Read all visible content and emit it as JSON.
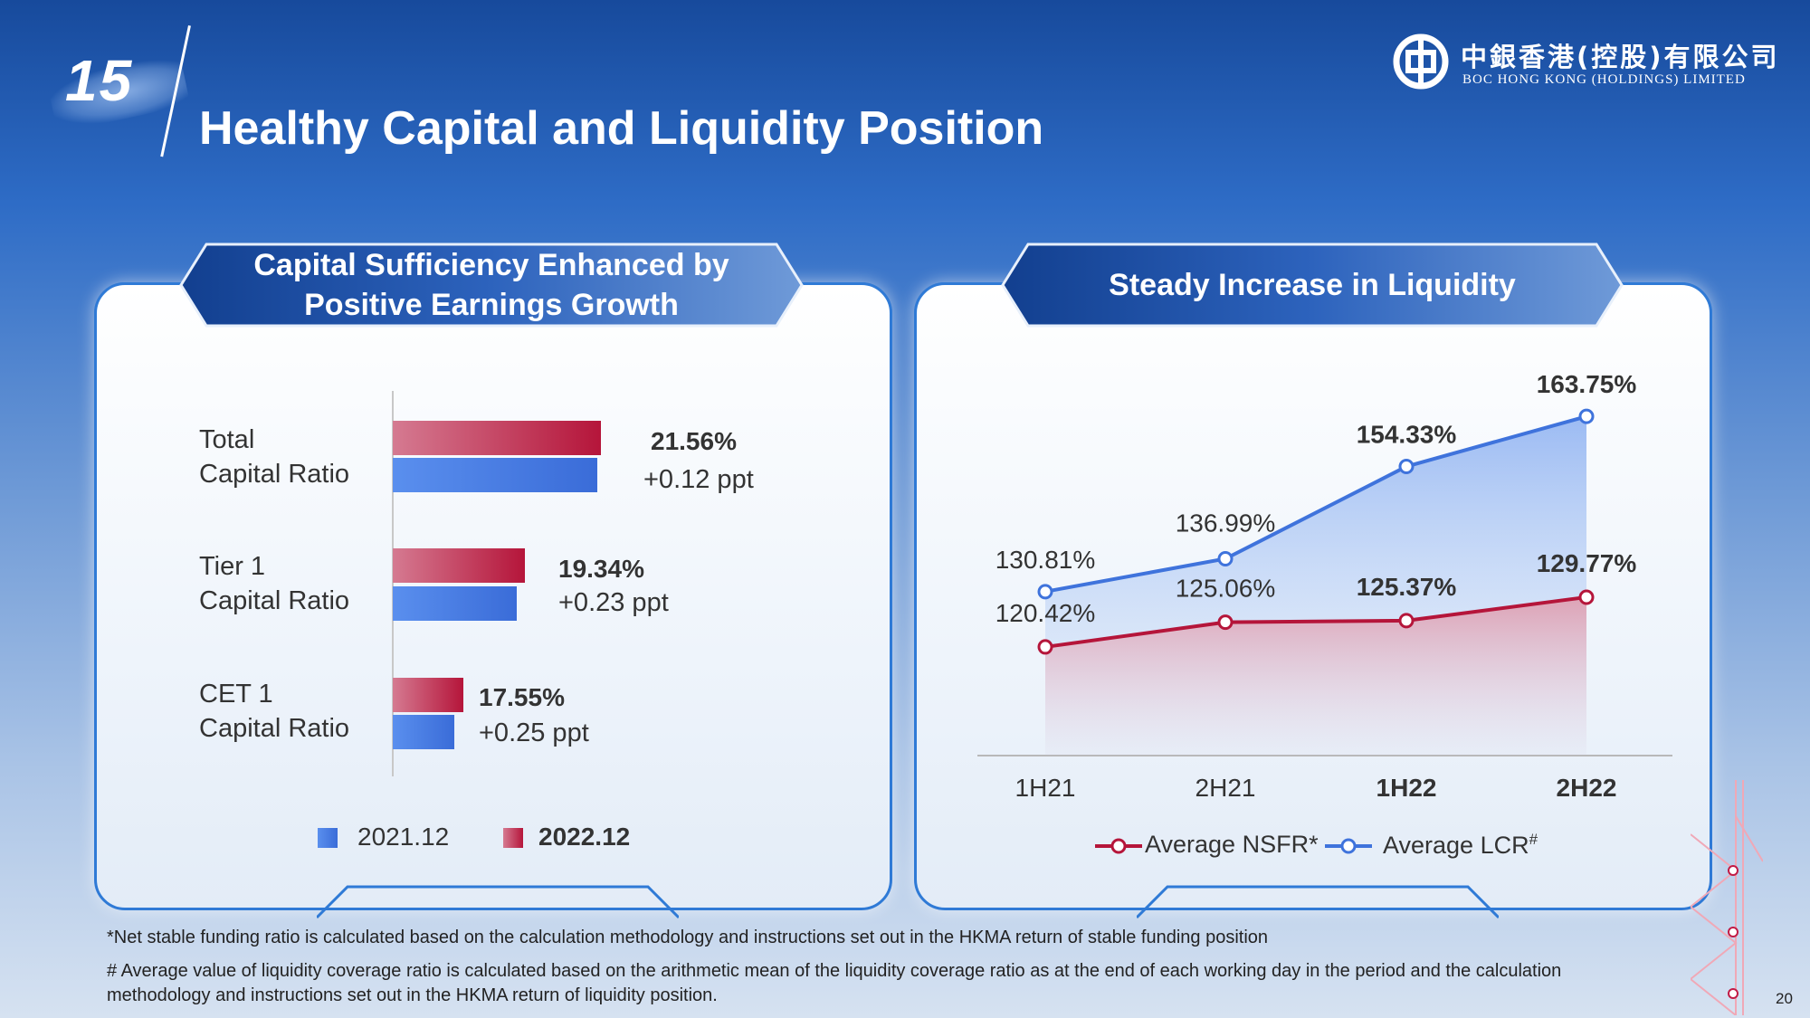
{
  "slide": {
    "number": "15",
    "title": "Healthy Capital and Liquidity Position",
    "page_number": "20"
  },
  "logo": {
    "chinese": "中銀香港(控股)有限公司",
    "english": "BOC HONG KONG (HOLDINGS) LIMITED"
  },
  "left_panel": {
    "banner_line1": "Capital Sufficiency Enhanced by",
    "banner_line2": "Positive Earnings Growth"
  },
  "right_panel": {
    "banner": "Steady Increase in Liquidity"
  },
  "colors": {
    "series_2022": "#b5153a",
    "series_2021": "#3a6cd8",
    "nsfr": "#b5153a",
    "lcr": "#3f73dc"
  },
  "chart_data": [
    {
      "type": "bar",
      "orientation": "horizontal",
      "categories": [
        {
          "line1": "Total",
          "line2": "Capital Ratio"
        },
        {
          "line1": "Tier 1",
          "line2": "Capital Ratio"
        },
        {
          "line1": "CET 1",
          "line2": "Capital Ratio"
        }
      ],
      "series": [
        {
          "name": "2022.12",
          "values": [
            21.56,
            19.34,
            17.55
          ]
        },
        {
          "name": "2021.12",
          "values": [
            21.44,
            19.11,
            17.3
          ]
        }
      ],
      "value_labels": [
        "21.56%",
        "19.34%",
        "17.55%"
      ],
      "delta_labels": [
        "+0.12 ppt",
        "+0.23 ppt",
        "+0.25 ppt"
      ],
      "xlim": [
        15.5,
        22.5
      ],
      "legend": {
        "items": [
          "2021.12",
          "2022.12"
        ],
        "position": "bottom"
      }
    },
    {
      "type": "line",
      "x": [
        "1H21",
        "2H21",
        "1H22",
        "2H22"
      ],
      "x_bold": [
        false,
        false,
        true,
        true
      ],
      "series": [
        {
          "name": "Average LCR#",
          "legend_label": "Average LCR",
          "legend_mark": "#",
          "values": [
            130.81,
            136.99,
            154.33,
            163.75
          ],
          "labels": [
            "130.81%",
            "136.99%",
            "154.33%",
            "163.75%"
          ],
          "label_bold": [
            false,
            false,
            true,
            true
          ]
        },
        {
          "name": "Average NSFR*",
          "values": [
            120.42,
            125.06,
            125.37,
            129.77
          ],
          "labels": [
            "120.42%",
            "125.06%",
            "125.37%",
            "129.77%"
          ],
          "label_bold": [
            false,
            false,
            true,
            true
          ]
        }
      ],
      "ylim": [
        100,
        170
      ],
      "legend_position": "bottom"
    }
  ],
  "footnotes": {
    "note1": "*Net stable funding ratio is calculated based on the calculation methodology and instructions set out in the HKMA return of stable funding position",
    "note2_line1": "# Average value of liquidity coverage ratio is calculated based on the arithmetic mean of the liquidity coverage ratio as at the end of each working day in the period and the calculation",
    "note2_line2": "methodology and instructions set out in the HKMA return of liquidity position."
  }
}
